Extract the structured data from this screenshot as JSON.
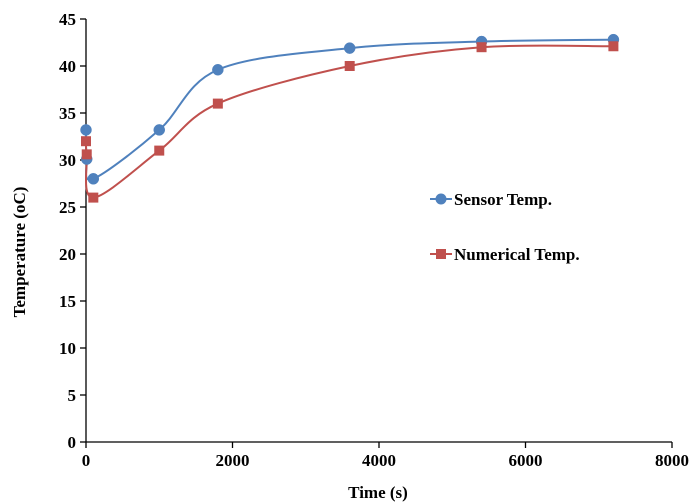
{
  "chart_data": {
    "type": "scatter",
    "title": "",
    "xlabel": "Time (s)",
    "ylabel": "Temperature  (oC)",
    "xlim": [
      0,
      8000
    ],
    "ylim": [
      0,
      45
    ],
    "xticks": [
      0,
      2000,
      4000,
      6000,
      8000
    ],
    "yticks": [
      0,
      5,
      10,
      15,
      20,
      25,
      30,
      35,
      40,
      45
    ],
    "grid": false,
    "legend_position": "right",
    "series": [
      {
        "name": "Sensor Temp.",
        "color": "#4F81BD",
        "marker": "circle",
        "smooth_line": true,
        "x": [
          0,
          10,
          100,
          1000,
          1800,
          3600,
          5400,
          7200
        ],
        "y": [
          33.2,
          30.1,
          28.0,
          33.2,
          39.6,
          41.9,
          42.6,
          42.8
        ]
      },
      {
        "name": "Numerical Temp.",
        "color": "#C0504D",
        "marker": "square",
        "smooth_line": true,
        "x": [
          0,
          10,
          100,
          1000,
          1800,
          3600,
          5400,
          7200
        ],
        "y": [
          32.0,
          30.6,
          26.0,
          31.0,
          36.0,
          40.0,
          42.0,
          42.1
        ]
      }
    ]
  }
}
